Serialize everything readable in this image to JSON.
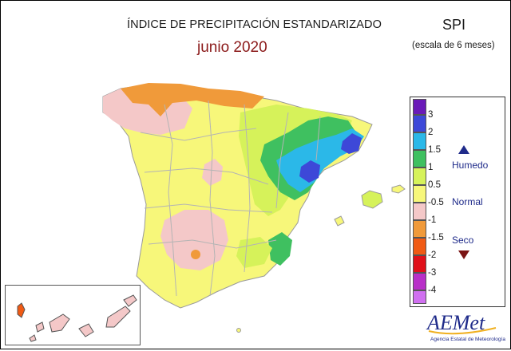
{
  "title": "ÍNDICE DE PRECIPITACIÓN ESTANDARIZADO",
  "subtitle": "junio 2020",
  "index_name": "SPI",
  "scale": "(escala de 6 meses)",
  "legend": {
    "values": [
      "3",
      "2",
      "1.5",
      "1",
      "0.5",
      "-0.5",
      "-1",
      "-1.5",
      "-2",
      "-3",
      "-4"
    ],
    "colors": [
      "#6a1ab8",
      "#3d48d8",
      "#2bb8e8",
      "#3fc060",
      "#d6f25a",
      "#f7f77a",
      "#f4c8c8",
      "#f09a3a",
      "#f05a14",
      "#e0101a",
      "#b830c8",
      "#d070f0"
    ],
    "categories": {
      "humid": "Humedo",
      "normal": "Normal",
      "dry": "Seco"
    }
  },
  "logo": {
    "name": "AEMet",
    "tagline": "Agencia Estatal de Meteorología"
  },
  "colors": {
    "title": "#1a1a1a",
    "month": "#8b1a1a",
    "category": "#1f2b8a"
  }
}
